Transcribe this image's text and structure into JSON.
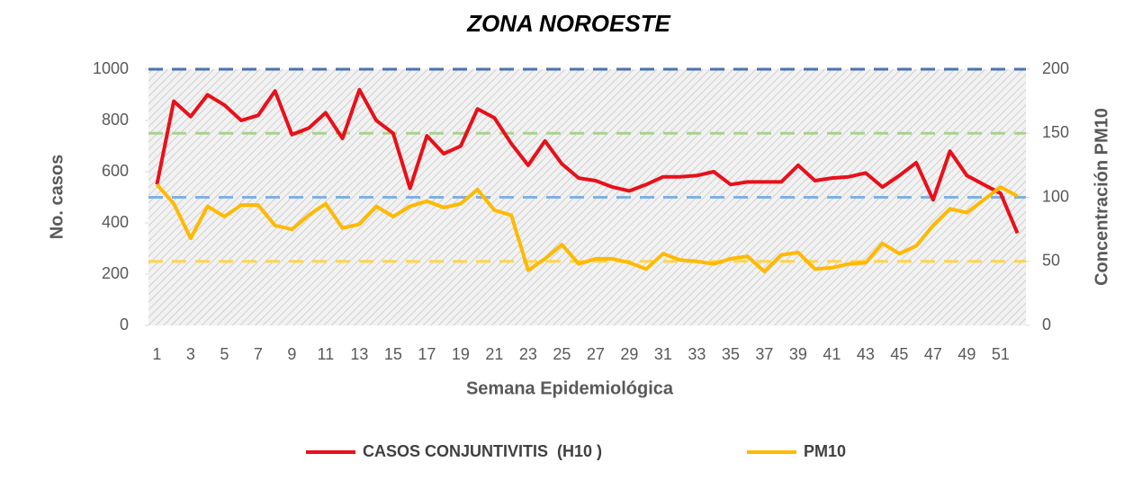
{
  "chart_data": {
    "type": "line",
    "title": "ZONA NOROESTE",
    "xlabel": "Semana Epidemiológica",
    "ylabel": "No. casos",
    "y2label": "Concentración PM10",
    "categories": [
      1,
      null,
      3,
      null,
      5,
      null,
      7,
      null,
      9,
      null,
      11,
      null,
      13,
      null,
      15,
      null,
      17,
      null,
      19,
      null,
      21,
      null,
      23,
      null,
      25,
      null,
      27,
      null,
      29,
      null,
      31,
      null,
      33,
      null,
      35,
      null,
      37,
      null,
      39,
      null,
      41,
      null,
      43,
      null,
      45,
      null,
      47,
      null,
      49,
      null,
      51,
      null
    ],
    "series": [
      {
        "name": "CASOS CONJUNTIVITIS  (H10 )",
        "color": "#e8101a",
        "values": [
          550,
          875,
          815,
          900,
          860,
          800,
          820,
          915,
          745,
          770,
          830,
          730,
          920,
          800,
          750,
          535,
          740,
          670,
          700,
          845,
          810,
          710,
          625,
          720,
          630,
          575,
          565,
          540,
          525,
          550,
          580,
          580,
          585,
          600,
          550,
          560,
          560,
          560,
          625,
          565,
          575,
          580,
          595,
          540,
          585,
          635,
          490,
          680,
          585,
          550,
          515,
          360
        ]
      },
      {
        "name": "PM10",
        "color": "#ffb900",
        "axis": "y2",
        "values": [
          110,
          95,
          68,
          93,
          85,
          94,
          94,
          78,
          75,
          86,
          95,
          76,
          79,
          93,
          85,
          93,
          97,
          92,
          95,
          106,
          90,
          86,
          43,
          52,
          63,
          48,
          52,
          52,
          49,
          44,
          56,
          51,
          50,
          48,
          52,
          54,
          42,
          55,
          57,
          44,
          45,
          48,
          49,
          64,
          56,
          62,
          78,
          91,
          88,
          98,
          108,
          101
        ]
      }
    ],
    "reference_lines": [
      {
        "value": 1000,
        "color": "#4a72b0"
      },
      {
        "value": 750,
        "color": "#a9d18e"
      },
      {
        "value": 500,
        "color": "#7fb0e6"
      },
      {
        "value": 250,
        "color": "#ffd54a"
      }
    ],
    "ylim": [
      0,
      1000
    ],
    "yticks": [
      0,
      200,
      400,
      600,
      800,
      1000
    ],
    "y2lim": [
      0,
      200
    ],
    "y2ticks": [
      0,
      50,
      100,
      150,
      200
    ],
    "legend": "bottom"
  }
}
